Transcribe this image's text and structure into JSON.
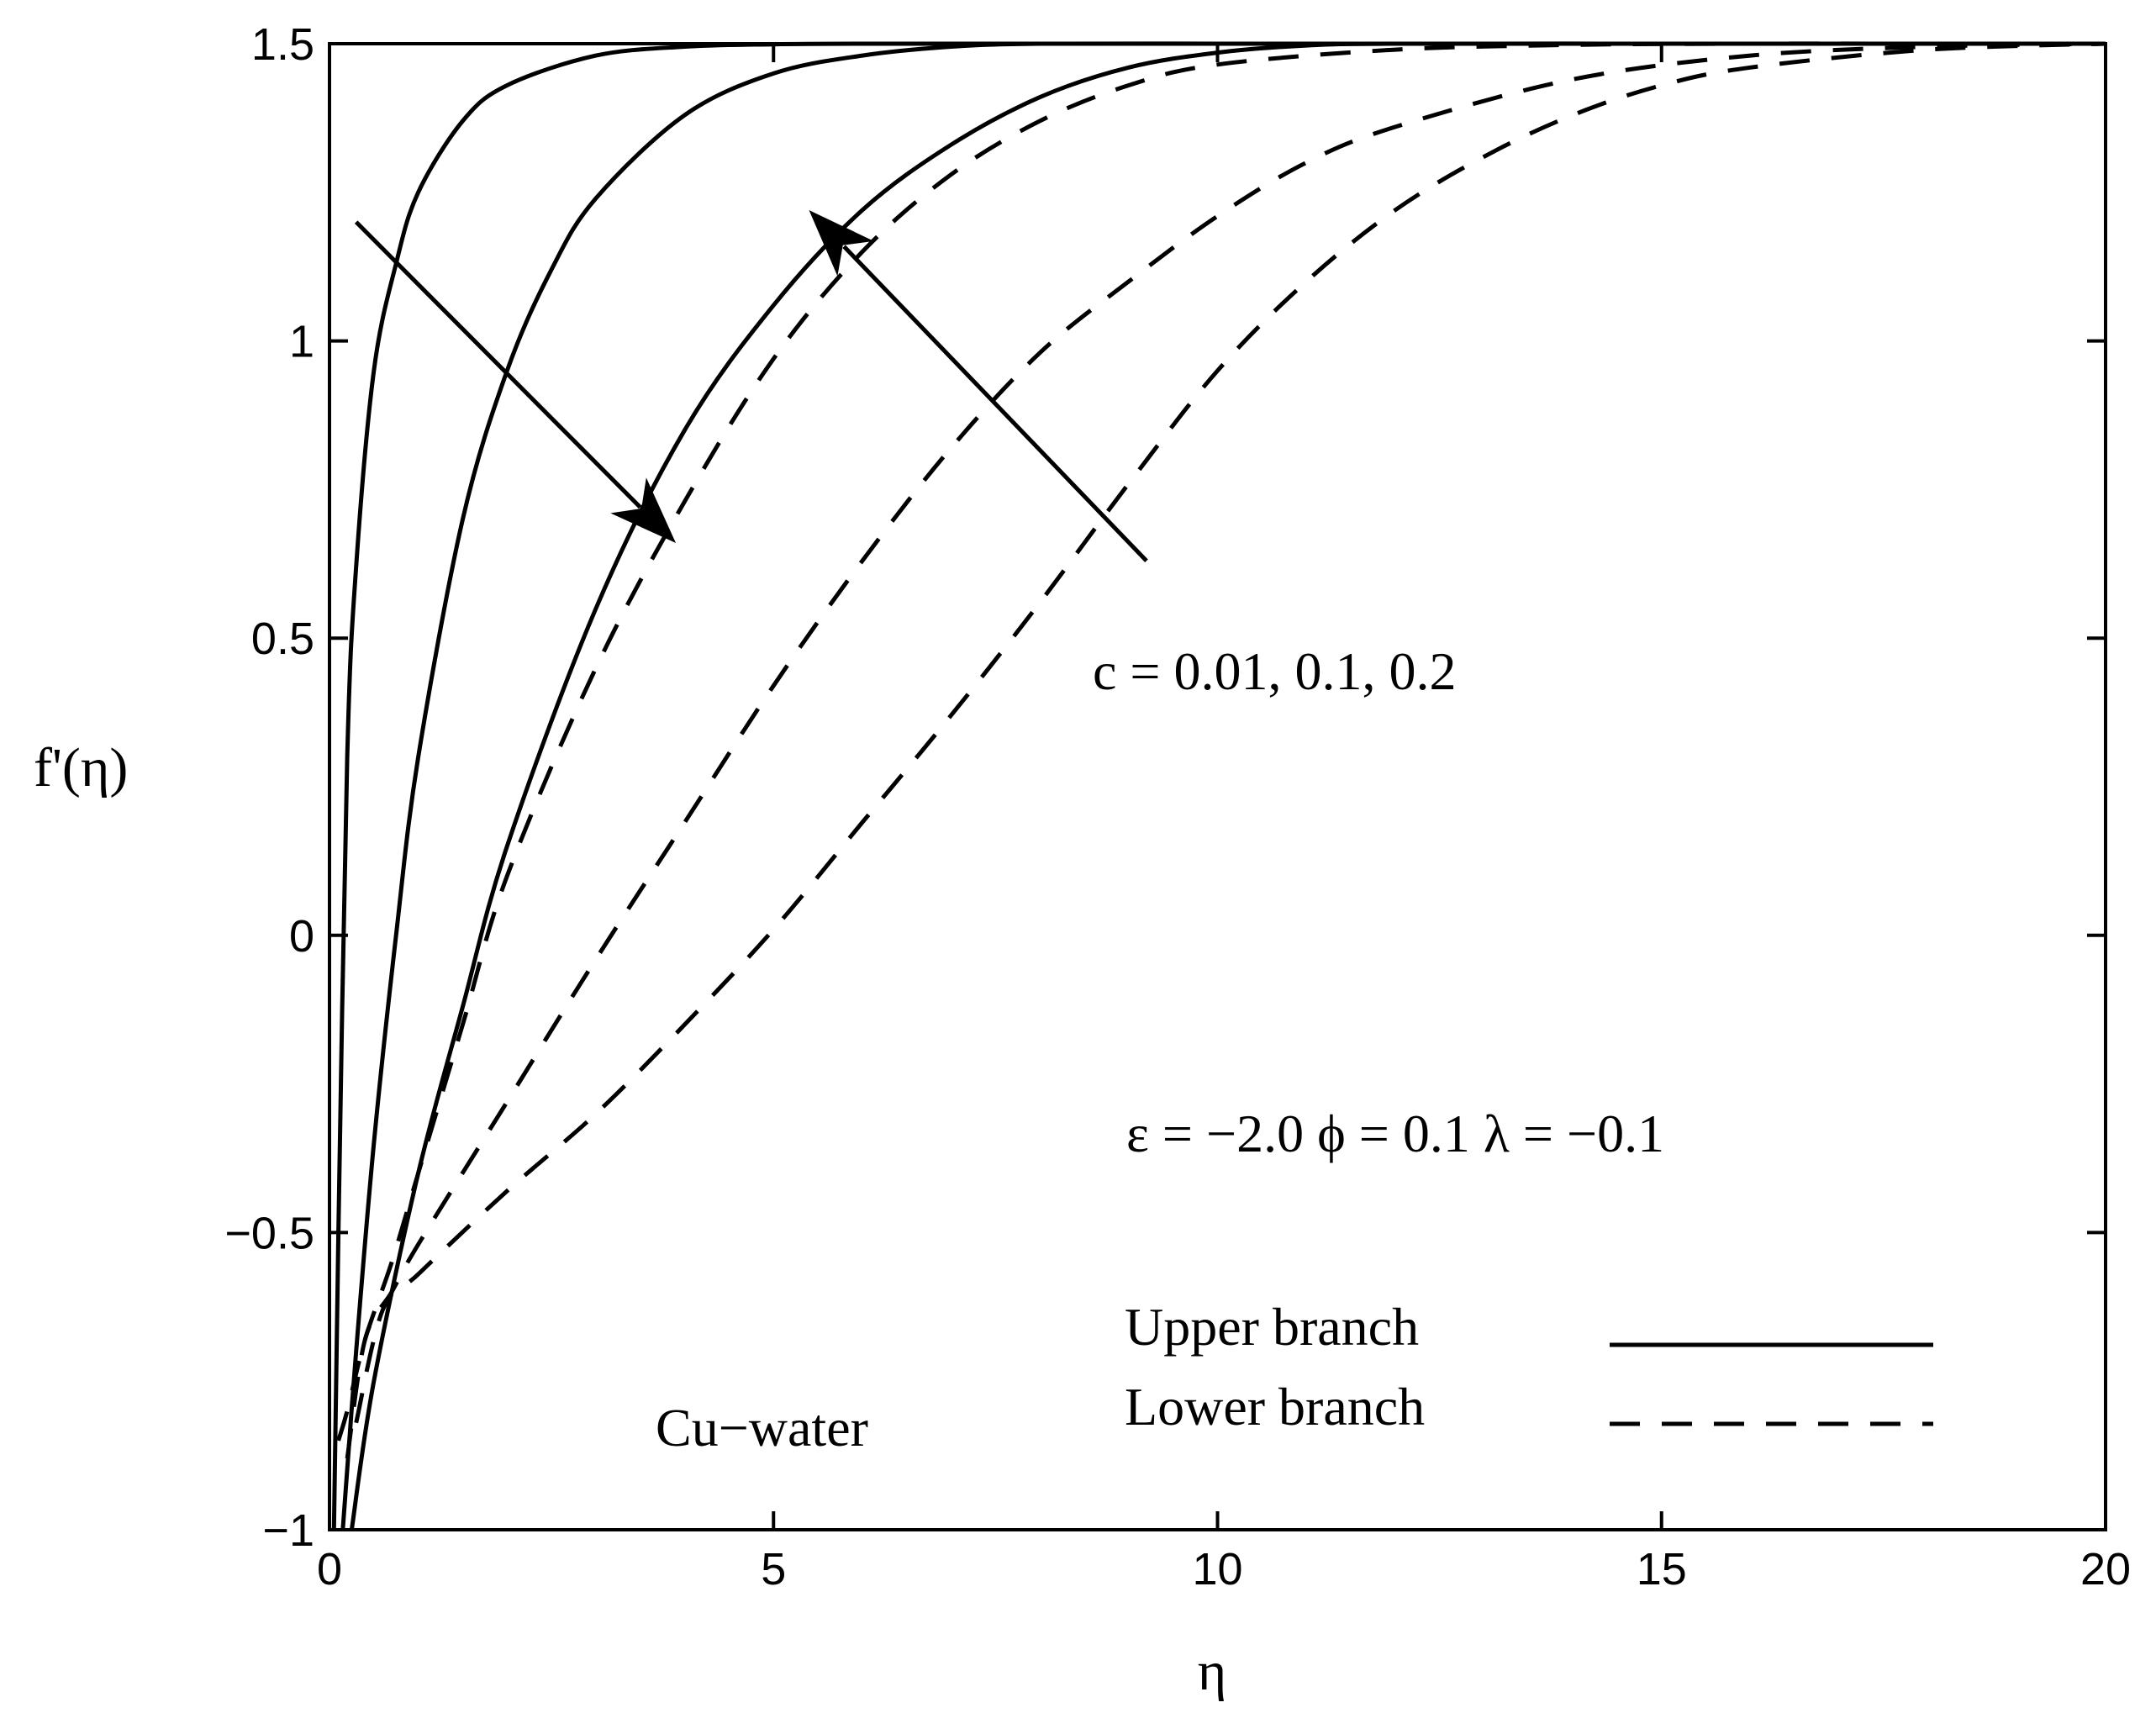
{
  "chart_data": {
    "type": "line",
    "title": "",
    "xlabel": "η",
    "ylabel": "f'(η)",
    "xlim": [
      0,
      20
    ],
    "ylim": [
      -1,
      1.5
    ],
    "xticks": [
      "0",
      "5",
      "10",
      "15",
      "20"
    ],
    "yticks": [
      "−1",
      "−0.5",
      "0",
      "0.5",
      "1",
      "1.5"
    ],
    "grid": false,
    "legend": {
      "position": "bottom-right",
      "entries": [
        {
          "label": "Upper branch",
          "style": "solid"
        },
        {
          "label": "Lower branch",
          "style": "dashed"
        }
      ]
    },
    "annotations": {
      "c_values": "c = 0.01, 0.1, 0.2",
      "params": "ε = −2.0   ϕ = 0.1   λ = −0.1",
      "fluid": "Cu−water"
    },
    "series": [
      {
        "branch": "upper",
        "c": 0.01,
        "style": "solid",
        "x": [
          0.05,
          0.1,
          0.2,
          0.3,
          0.5,
          0.75,
          1.0,
          1.5,
          2.0,
          3.0,
          4.0,
          5.0,
          6.0,
          8.0,
          10.0,
          12.0,
          15.0,
          18.0,
          20.0
        ],
        "y": [
          -1.0,
          -0.5,
          0.3,
          0.62,
          0.95,
          1.13,
          1.25,
          1.37,
          1.43,
          1.48,
          1.495,
          1.499,
          1.5,
          1.5,
          1.5,
          1.5,
          1.5,
          1.5,
          1.5
        ]
      },
      {
        "branch": "upper",
        "c": 0.1,
        "style": "solid",
        "x": [
          0.15,
          0.3,
          0.5,
          0.75,
          1.0,
          1.5,
          2.0,
          2.5,
          3.0,
          4.0,
          5.0,
          6.0,
          7.0,
          8.0,
          10.0,
          12.0,
          15.0,
          18.0,
          20.0
        ],
        "y": [
          -1.0,
          -0.7,
          -0.35,
          0.0,
          0.3,
          0.7,
          0.95,
          1.12,
          1.24,
          1.38,
          1.45,
          1.48,
          1.495,
          1.5,
          1.5,
          1.5,
          1.5,
          1.5,
          1.5
        ]
      },
      {
        "branch": "upper",
        "c": 0.2,
        "style": "solid",
        "x": [
          0.25,
          0.5,
          1.0,
          1.5,
          2.0,
          3.0,
          4.0,
          5.0,
          6.0,
          7.0,
          8.0,
          9.0,
          10.0,
          11.0,
          12.0,
          15.0,
          18.0,
          20.0
        ],
        "y": [
          -1.0,
          -0.75,
          -0.4,
          -0.12,
          0.15,
          0.55,
          0.85,
          1.06,
          1.22,
          1.33,
          1.41,
          1.46,
          1.485,
          1.497,
          1.5,
          1.5,
          1.5,
          1.5
        ]
      },
      {
        "branch": "lower",
        "c": 0.01,
        "style": "dashed",
        "x": [
          0.1,
          0.2,
          0.4,
          0.7,
          1.0,
          1.5,
          2.0,
          3.0,
          4.0,
          5.0,
          6.0,
          7.0,
          8.0,
          9.0,
          10.0,
          12.0,
          14.0,
          16.0,
          18.0,
          20.0
        ],
        "y": [
          -0.85,
          -0.8,
          -0.68,
          -0.55,
          -0.4,
          -0.15,
          0.1,
          0.45,
          0.73,
          0.97,
          1.15,
          1.28,
          1.37,
          1.43,
          1.465,
          1.49,
          1.498,
          1.5,
          1.5,
          1.5
        ]
      },
      {
        "branch": "lower",
        "c": 0.1,
        "style": "dashed",
        "x": [
          0.2,
          0.4,
          0.7,
          1.0,
          2.0,
          3.0,
          4.0,
          5.0,
          6.0,
          7.0,
          8.0,
          9.0,
          10.0,
          11.0,
          12.0,
          14.0,
          16.0,
          18.0,
          20.0
        ],
        "y": [
          -0.88,
          -0.68,
          -0.6,
          -0.52,
          -0.28,
          -0.04,
          0.19,
          0.42,
          0.63,
          0.82,
          0.98,
          1.1,
          1.21,
          1.3,
          1.36,
          1.44,
          1.48,
          1.495,
          1.5
        ]
      },
      {
        "branch": "lower",
        "c": 0.2,
        "style": "dashed",
        "x": [
          0.3,
          0.6,
          1.0,
          2.0,
          3.0,
          4.0,
          5.0,
          6.0,
          7.0,
          8.0,
          9.0,
          10.0,
          11.0,
          12.0,
          13.0,
          14.0,
          15.0,
          16.0,
          18.0,
          20.0
        ],
        "y": [
          -0.82,
          -0.63,
          -0.57,
          -0.43,
          -0.3,
          -0.15,
          0.01,
          0.19,
          0.37,
          0.56,
          0.76,
          0.95,
          1.1,
          1.22,
          1.31,
          1.38,
          1.43,
          1.46,
          1.49,
          1.5
        ]
      }
    ],
    "arrows": [
      {
        "from": [
          0.3,
          1.2
        ],
        "to": [
          3.9,
          0.66
        ]
      },
      {
        "from": [
          9.2,
          0.63
        ],
        "to": [
          5.4,
          1.22
        ]
      }
    ]
  }
}
